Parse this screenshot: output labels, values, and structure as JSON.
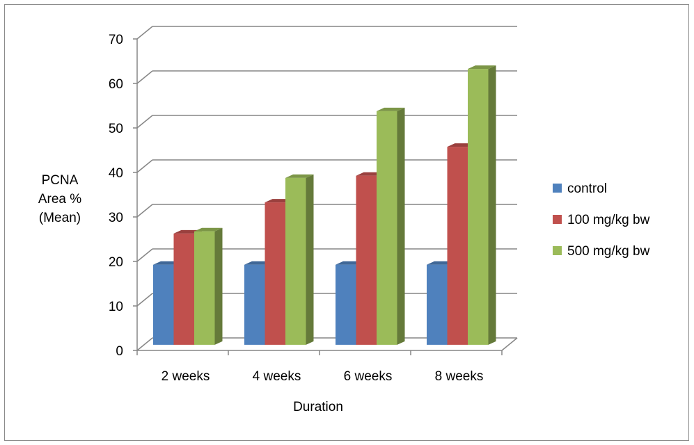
{
  "chart_data": {
    "type": "bar",
    "subtype": "3d-clustered-column",
    "title": "",
    "xlabel": "Duration",
    "ylabel": [
      "PCNA",
      "Area %",
      "(Mean)"
    ],
    "categories": [
      "2 weeks",
      "4 weeks",
      "6 weeks",
      "8 weeks"
    ],
    "ylim": [
      0,
      70
    ],
    "yticks": [
      0,
      10,
      20,
      30,
      40,
      50,
      60,
      70
    ],
    "grid": true,
    "legend": "right",
    "series": [
      {
        "name": "control",
        "color": "#4f81bd",
        "values": [
          18,
          18,
          18,
          18
        ]
      },
      {
        "name": "100 mg/kg bw",
        "color": "#c0504d",
        "values": [
          25,
          32,
          38,
          44.5
        ]
      },
      {
        "name": "500 mg/kg bw",
        "color": "#9bbb59",
        "values": [
          25.5,
          37.5,
          52.5,
          62
        ]
      }
    ]
  }
}
